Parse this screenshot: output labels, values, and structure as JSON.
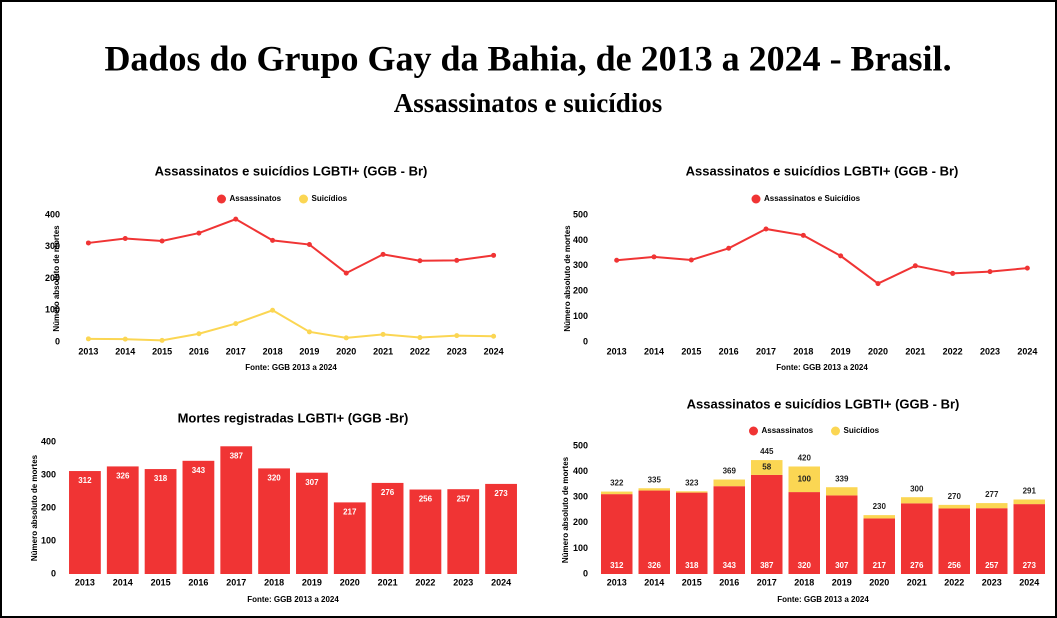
{
  "header": {
    "title": "Dados do Grupo Gay da Bahia, de 2013 a 2024 - Brasil.",
    "subtitle": "Assassinatos e suicídios"
  },
  "chart_data": [
    {
      "type": "line",
      "title": "Assassinatos e suicídios LGBTI+ (GGB - Br)",
      "y_label": "Número absoluto de mortes",
      "source": "Fonte: GGB 2013 a 2024",
      "categories": [
        "2013",
        "2014",
        "2015",
        "2016",
        "2017",
        "2018",
        "2019",
        "2020",
        "2021",
        "2022",
        "2023",
        "2024"
      ],
      "series": [
        {
          "name": "Assassinatos",
          "color": "#f03434",
          "values": [
            312,
            326,
            318,
            343,
            387,
            320,
            307,
            217,
            276,
            256,
            257,
            273
          ]
        },
        {
          "name": "Suicídios",
          "color": "#fbd653",
          "values": [
            10,
            9,
            5,
            26,
            58,
            100,
            32,
            13,
            24,
            14,
            20,
            18
          ]
        }
      ],
      "ylim": [
        0,
        400
      ],
      "yticks": [
        0,
        100,
        200,
        300,
        400
      ],
      "legend": "top"
    },
    {
      "type": "line",
      "title": "Assassinatos e suicídios LGBTI+ (GGB - Br)",
      "y_label": "Número absoluto de mortes",
      "source": "Fonte: GGB 2013 a 2024",
      "categories": [
        "2013",
        "2014",
        "2015",
        "2016",
        "2017",
        "2018",
        "2019",
        "2020",
        "2021",
        "2022",
        "2023",
        "2024"
      ],
      "series": [
        {
          "name": "Assassinatos e Suicídios",
          "color": "#f03434",
          "values": [
            322,
            335,
            323,
            369,
            445,
            420,
            339,
            230,
            300,
            270,
            277,
            291
          ]
        }
      ],
      "ylim": [
        0,
        500
      ],
      "yticks": [
        0,
        100,
        200,
        300,
        400,
        500
      ],
      "legend": "top"
    },
    {
      "type": "bar",
      "title": "Mortes registradas LGBTI+ (GGB -Br)",
      "y_label": "Número absoluto de mortes",
      "source": "Fonte: GGB 2013 a 2024",
      "categories": [
        "2013",
        "2014",
        "2015",
        "2016",
        "2017",
        "2018",
        "2019",
        "2020",
        "2021",
        "2022",
        "2023",
        "2024"
      ],
      "values": [
        312,
        326,
        318,
        343,
        387,
        320,
        307,
        217,
        276,
        256,
        257,
        273
      ],
      "color": "#f03434",
      "ylim": [
        0,
        400
      ],
      "yticks": [
        0,
        100,
        200,
        300,
        400
      ]
    },
    {
      "type": "bar",
      "stacked": true,
      "title": "Assassinatos e suicídios LGBTI+ (GGB - Br)",
      "y_label": "Número absoluto de mortes",
      "source": "Fonte: GGB 2013 a 2024",
      "categories": [
        "2013",
        "2014",
        "2015",
        "2016",
        "2017",
        "2018",
        "2019",
        "2020",
        "2021",
        "2022",
        "2023",
        "2024"
      ],
      "series": [
        {
          "name": "Assassinatos",
          "color": "#f03434",
          "values": [
            312,
            326,
            318,
            343,
            387,
            320,
            307,
            217,
            276,
            256,
            257,
            273
          ]
        },
        {
          "name": "Suicídios",
          "color": "#fbd653",
          "values": [
            10,
            9,
            5,
            26,
            58,
            100,
            32,
            13,
            24,
            14,
            20,
            18
          ],
          "value_labels": [
            null,
            null,
            null,
            null,
            "58",
            "100",
            null,
            null,
            null,
            null,
            null,
            null
          ]
        }
      ],
      "totals": [
        322,
        335,
        323,
        369,
        445,
        420,
        339,
        230,
        300,
        270,
        277,
        291
      ],
      "ylim": [
        0,
        500
      ],
      "yticks": [
        0,
        100,
        200,
        300,
        400,
        500
      ],
      "legend": "top"
    }
  ]
}
